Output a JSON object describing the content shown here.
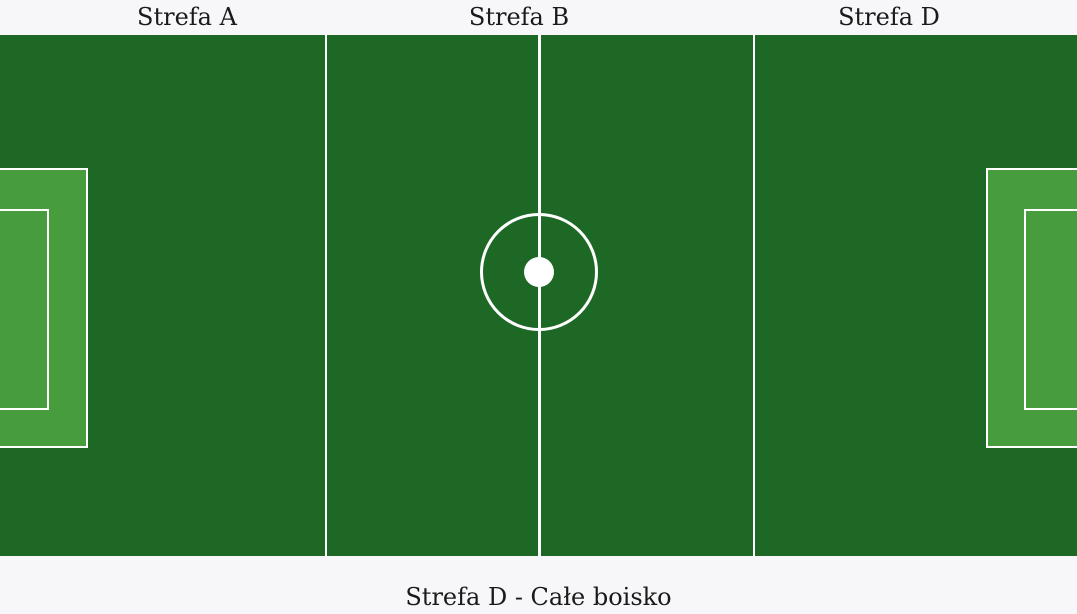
{
  "zones": {
    "a_label": "Strefa A",
    "b_label": "Strefa B",
    "d_label": "Strefa D"
  },
  "caption": "Strefa D - Całe boisko",
  "colors": {
    "pitch": "#1e6826",
    "penalty_area": "#479c3d",
    "lines": "#ffffff",
    "background": "#f7f7f9"
  }
}
